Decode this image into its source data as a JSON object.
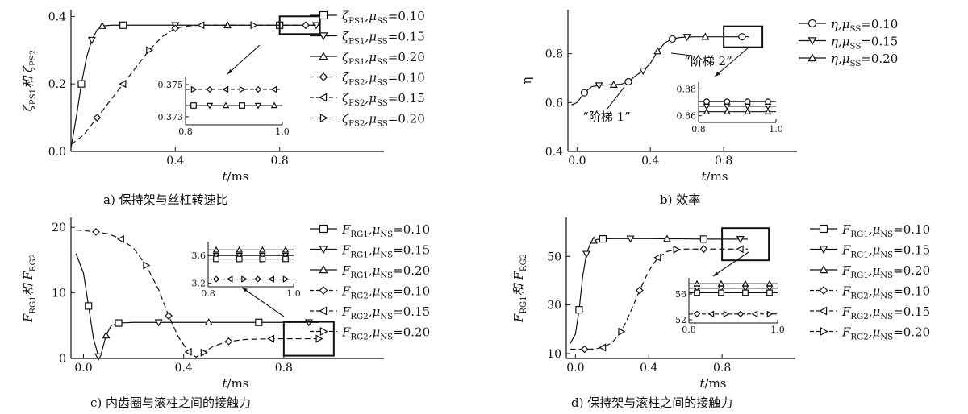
{
  "captions": {
    "a": "a)   保持架与丝杠转速比",
    "b": "b)   效率",
    "c": "c)   内齿圈与滚柱之间的接触力",
    "d": "d)   保持架与滚柱之间的接触力"
  },
  "chart_data": [
    {
      "panel": "a",
      "type": "line",
      "caption": "保持架与丝杠转速比",
      "xlabel": "t/ms",
      "ylabel": "ζPS1和 ζPS2",
      "xlim": [
        0,
        1.2
      ],
      "ylim": [
        0,
        0.42
      ],
      "xticks": [
        0.4,
        0.8
      ],
      "yticks": [
        0,
        0.2,
        0.4
      ],
      "legend_position": "right",
      "series": [
        {
          "name": "ζPS1,μSS=0.10",
          "style": "solid",
          "marker": "square",
          "x": [
            0,
            0.02,
            0.04,
            0.06,
            0.08,
            0.1,
            0.12,
            0.16,
            0.2,
            0.3,
            0.4,
            0.5,
            0.6,
            0.7,
            0.8,
            0.9,
            0.94
          ],
          "y": [
            0.01,
            0.1,
            0.2,
            0.28,
            0.33,
            0.36,
            0.372,
            0.374,
            0.374,
            0.374,
            0.374,
            0.374,
            0.374,
            0.374,
            0.374,
            0.374,
            0.374
          ]
        },
        {
          "name": "ζPS1,μSS=0.15",
          "style": "solid",
          "marker": "triangle-down",
          "x": [],
          "y": []
        },
        {
          "name": "ζPS1,μSS=0.20",
          "style": "solid",
          "marker": "triangle-up",
          "x": [],
          "y": []
        },
        {
          "name": "ζPS2,μSS=0.10",
          "style": "dashed",
          "marker": "diamond",
          "x": [
            0,
            0.05,
            0.1,
            0.15,
            0.2,
            0.25,
            0.3,
            0.35,
            0.4,
            0.45,
            0.5,
            0.6,
            0.7,
            0.8,
            0.9,
            0.94
          ],
          "y": [
            0.02,
            0.05,
            0.1,
            0.15,
            0.2,
            0.25,
            0.3,
            0.34,
            0.365,
            0.372,
            0.374,
            0.374,
            0.374,
            0.374,
            0.374,
            0.374
          ]
        },
        {
          "name": "ζPS2,μSS=0.15",
          "style": "dashed",
          "marker": "triangle-left",
          "x": [],
          "y": []
        },
        {
          "name": "ζPS2,μSS=0.20",
          "style": "dashed",
          "marker": "triangle-right",
          "x": [],
          "y": []
        }
      ],
      "inset": {
        "xlim": [
          0.8,
          1.0
        ],
        "ylim": [
          0.3725,
          0.3755
        ],
        "xticks": [
          0.8,
          1.0
        ],
        "yticks": [
          0.373,
          0.375
        ],
        "series": [
          {
            "style": "dashed",
            "markers": [
              "triangle-right",
              "diamond",
              "triangle-left"
            ],
            "y": 0.3747
          },
          {
            "style": "solid",
            "markers": [
              "square",
              "triangle-down",
              "triangle-up"
            ],
            "y": 0.3737
          }
        ]
      }
    },
    {
      "panel": "b",
      "type": "line",
      "caption": "效率",
      "xlabel": "t/ms",
      "ylabel": "η",
      "xlim": [
        -0.05,
        1.2
      ],
      "ylim": [
        0.4,
        0.98
      ],
      "xticks": [
        0.0,
        0.4,
        0.8
      ],
      "yticks": [
        0.4,
        0.6,
        0.8
      ],
      "legend_position": "right",
      "annotations": [
        "“阶梯 1”",
        "“阶梯 2”"
      ],
      "series": [
        {
          "name": "η,μSS=0.10",
          "style": "solid",
          "marker": "circle",
          "x": [
            -0.03,
            0.0,
            0.04,
            0.08,
            0.12,
            0.16,
            0.2,
            0.24,
            0.28,
            0.32,
            0.36,
            0.4,
            0.44,
            0.48,
            0.52,
            0.56,
            0.6,
            0.64,
            0.7,
            0.8,
            0.9,
            0.94
          ],
          "y": [
            0.59,
            0.6,
            0.64,
            0.665,
            0.67,
            0.672,
            0.673,
            0.675,
            0.685,
            0.71,
            0.73,
            0.76,
            0.81,
            0.845,
            0.86,
            0.866,
            0.868,
            0.869,
            0.869,
            0.869,
            0.869,
            0.869
          ]
        },
        {
          "name": "η,μSS=0.15",
          "style": "solid",
          "marker": "triangle-down",
          "x": [],
          "y": []
        },
        {
          "name": "η,μSS=0.20",
          "style": "solid",
          "marker": "triangle-up",
          "x": [],
          "y": []
        }
      ],
      "inset": {
        "xlim": [
          0.8,
          1.0
        ],
        "ylim": [
          0.855,
          0.885
        ],
        "xticks": [
          0.8,
          1.0
        ],
        "yticks": [
          0.86,
          0.88
        ],
        "series": [
          {
            "marker": "circle",
            "y": 0.8705
          },
          {
            "marker": "triangle-down",
            "y": 0.867
          },
          {
            "marker": "triangle-up",
            "y": 0.863
          }
        ]
      }
    },
    {
      "panel": "c",
      "type": "line",
      "caption": "内齿圈与滚柱之间的接触力",
      "xlabel": "t/ms",
      "ylabel": "FRG1和 FRG2",
      "xlim": [
        -0.05,
        1.2
      ],
      "ylim": [
        0,
        21.5
      ],
      "xticks": [
        0.0,
        0.4,
        0.8
      ],
      "yticks": [
        0,
        10,
        20
      ],
      "legend_position": "right",
      "series": [
        {
          "name": "FRG1,μNS=0.10",
          "style": "solid",
          "marker": "square",
          "x": [
            -0.03,
            0.0,
            0.02,
            0.04,
            0.06,
            0.07,
            0.09,
            0.11,
            0.14,
            0.2,
            0.3,
            0.4,
            0.5,
            0.6,
            0.7,
            0.8,
            0.9,
            0.94
          ],
          "y": [
            16,
            13,
            8,
            3,
            0.3,
            0.6,
            3.5,
            5.0,
            5.4,
            5.5,
            5.5,
            5.5,
            5.5,
            5.5,
            5.5,
            5.5,
            5.5,
            5.5
          ]
        },
        {
          "name": "FRG1,μNS=0.15",
          "style": "solid",
          "marker": "triangle-down",
          "x": [],
          "y": []
        },
        {
          "name": "FRG1,μNS=0.20",
          "style": "solid",
          "marker": "triangle-up",
          "x": [],
          "y": []
        },
        {
          "name": "FRG2,μNS=0.10",
          "style": "dashed",
          "marker": "diamond",
          "x": [
            -0.03,
            0.0,
            0.05,
            0.1,
            0.15,
            0.2,
            0.25,
            0.3,
            0.34,
            0.38,
            0.42,
            0.45,
            0.48,
            0.52,
            0.58,
            0.65,
            0.75,
            0.85,
            0.94
          ],
          "y": [
            19.6,
            19.5,
            19.3,
            19.0,
            18.2,
            16.8,
            14.2,
            10.5,
            6.5,
            3.2,
            1.0,
            0.2,
            0.9,
            1.9,
            2.6,
            2.9,
            3.0,
            3.0,
            3.0
          ]
        },
        {
          "name": "FRG2,μNS=0.15",
          "style": "dashed",
          "marker": "triangle-left",
          "x": [],
          "y": []
        },
        {
          "name": "FRG2,μNS=0.20",
          "style": "dashed",
          "marker": "triangle-right",
          "x": [],
          "y": []
        }
      ],
      "inset": {
        "xlim": [
          0.8,
          1.0
        ],
        "ylim": [
          3.15,
          3.8
        ],
        "xticks": [
          0.8,
          1.0
        ],
        "yticks": [
          3.2,
          3.6
        ],
        "series": [
          {
            "style": "solid",
            "marker": "triangle-up",
            "y": 3.68
          },
          {
            "style": "solid",
            "marker": "triangle-down",
            "y": 3.6
          },
          {
            "style": "solid",
            "marker": "square",
            "y": 3.55
          },
          {
            "style": "dashed",
            "markers": [
              "diamond",
              "triangle-left",
              "triangle-right"
            ],
            "y": 3.26
          }
        ]
      }
    },
    {
      "panel": "d",
      "type": "line",
      "caption": "保持架与滚柱之间的接触力",
      "xlabel": "t/ms",
      "ylabel": "FRG1和 FRG2",
      "xlim": [
        -0.05,
        1.2
      ],
      "ylim": [
        8,
        66
      ],
      "xticks": [
        0.0,
        0.4,
        0.8
      ],
      "yticks": [
        10,
        30,
        50
      ],
      "legend_position": "right",
      "series": [
        {
          "name": "FRG1,μNS=0.10",
          "style": "solid",
          "marker": "square",
          "x": [
            -0.03,
            0.0,
            0.02,
            0.04,
            0.06,
            0.08,
            0.1,
            0.12,
            0.15,
            0.2,
            0.3,
            0.4,
            0.5,
            0.6,
            0.7,
            0.8,
            0.9,
            0.94
          ],
          "y": [
            14,
            18,
            28,
            42,
            51,
            55,
            56.5,
            57,
            57.2,
            57.3,
            57.3,
            57.3,
            57.2,
            57.2,
            57.1,
            57.1,
            57.1,
            57.1
          ]
        },
        {
          "name": "FRG1,μNS=0.15",
          "style": "solid",
          "marker": "triangle-down",
          "x": [],
          "y": []
        },
        {
          "name": "FRG1,μNS=0.20",
          "style": "solid",
          "marker": "triangle-up",
          "x": [],
          "y": []
        },
        {
          "name": "FRG2,μNS=0.10",
          "style": "dashed",
          "marker": "diamond",
          "x": [
            -0.03,
            0.0,
            0.05,
            0.1,
            0.15,
            0.2,
            0.25,
            0.3,
            0.35,
            0.4,
            0.45,
            0.5,
            0.55,
            0.6,
            0.7,
            0.8,
            0.9,
            0.94
          ],
          "y": [
            11.8,
            11.8,
            11.8,
            11.9,
            12.5,
            14.5,
            19,
            27,
            36,
            44,
            49.5,
            52,
            52.8,
            53,
            53,
            53,
            53,
            53
          ]
        },
        {
          "name": "FRG2,μNS=0.15",
          "style": "dashed",
          "marker": "triangle-left",
          "x": [],
          "y": []
        },
        {
          "name": "FRG2,μNS=0.20",
          "style": "dashed",
          "marker": "triangle-right",
          "x": [],
          "y": []
        }
      ],
      "inset": {
        "xlim": [
          0.8,
          1.0
        ],
        "ylim": [
          51.5,
          58.5
        ],
        "xticks": [
          0.8,
          1.0
        ],
        "yticks": [
          52,
          56
        ],
        "series": [
          {
            "style": "solid",
            "marker": "triangle-up",
            "y": 57.6
          },
          {
            "style": "solid",
            "marker": "triangle-down",
            "y": 56.9
          },
          {
            "style": "solid",
            "marker": "square",
            "y": 56.2
          },
          {
            "style": "dashed",
            "markers": [
              "diamond",
              "triangle-left",
              "triangle-right"
            ],
            "y": 52.9
          }
        ]
      }
    }
  ]
}
